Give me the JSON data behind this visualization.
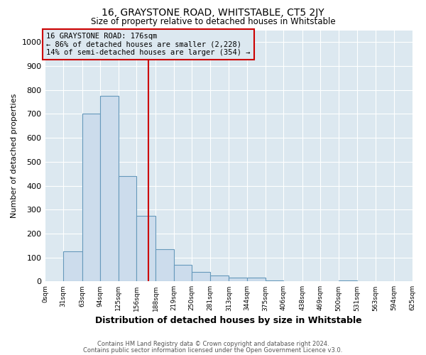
{
  "title": "16, GRAYSTONE ROAD, WHITSTABLE, CT5 2JY",
  "subtitle": "Size of property relative to detached houses in Whitstable",
  "xlabel": "Distribution of detached houses by size in Whitstable",
  "ylabel": "Number of detached properties",
  "bin_edges": [
    0,
    31,
    63,
    94,
    125,
    156,
    188,
    219,
    250,
    281,
    313,
    344,
    375,
    406,
    438,
    469,
    500,
    531,
    563,
    594,
    625
  ],
  "bar_heights": [
    0,
    125,
    700,
    775,
    440,
    275,
    135,
    70,
    40,
    25,
    15,
    15,
    5,
    0,
    0,
    0,
    5,
    0,
    0,
    0
  ],
  "bar_color": "#ccdcec",
  "bar_edgecolor": "#6699bb",
  "vline_x": 176,
  "vline_color": "#cc0000",
  "annotation_title": "16 GRAYSTONE ROAD: 176sqm",
  "annotation_line1": "← 86% of detached houses are smaller (2,228)",
  "annotation_line2": "14% of semi-detached houses are larger (354) →",
  "annotation_box_edgecolor": "#cc0000",
  "ylim": [
    0,
    1050
  ],
  "yticks": [
    0,
    100,
    200,
    300,
    400,
    500,
    600,
    700,
    800,
    900,
    1000
  ],
  "footer1": "Contains HM Land Registry data © Crown copyright and database right 2024.",
  "footer2": "Contains public sector information licensed under the Open Government Licence v3.0.",
  "fig_bg_color": "#ffffff",
  "plot_bg_color": "#dce8f0",
  "grid_color": "#ffffff",
  "title_fontsize": 10,
  "subtitle_fontsize": 8.5,
  "ylabel_fontsize": 8,
  "xlabel_fontsize": 9,
  "ytick_fontsize": 8,
  "xtick_fontsize": 6.5,
  "footer_fontsize": 6,
  "ann_fontsize": 7.5
}
